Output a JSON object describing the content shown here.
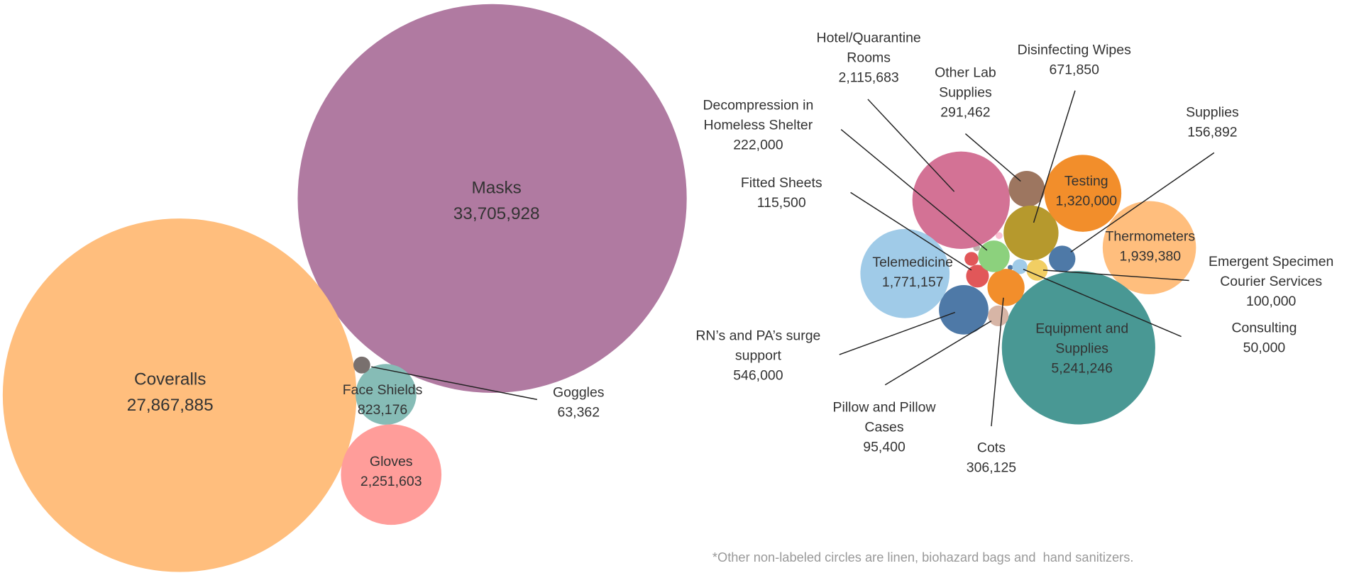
{
  "chart_data": [
    {
      "type": "bubble",
      "categories": [
        "Masks",
        "Coveralls",
        "Face Shields",
        "Gloves",
        "Goggles"
      ],
      "values": [
        33705928,
        27867885,
        823176,
        2251603,
        63362
      ],
      "value_labels": [
        "33,705,928",
        "27,867,885",
        "823,176",
        "2,251,603",
        "63,362"
      ],
      "colors": [
        "#b07aa1",
        "#ffbe7d",
        "#86bcb6",
        "#ff9d9a",
        "#79706e"
      ]
    },
    {
      "type": "bubble",
      "categories": [
        "Hotel/Quarantine Rooms",
        "Other Lab Supplies",
        "Disinfecting Wipes",
        "Testing",
        "Supplies",
        "Thermometers",
        "Emergent Specimen Courier Services",
        "Consulting",
        "Equipment and Supplies",
        "Cots",
        "Pillow and Pillow Cases",
        "RN’s and PA’s surge support",
        "Telemedicine",
        "Fitted Sheets",
        "Decompression in Homeless Shelter"
      ],
      "values": [
        2115683,
        291462,
        671850,
        1320000,
        156892,
        1939380,
        100000,
        50000,
        5241246,
        306125,
        95400,
        546000,
        1771157,
        115500,
        222000
      ],
      "value_labels": [
        "2,115,683",
        "291,462",
        "671,850",
        "1,320,000",
        "156,892",
        "1,939,380",
        "100,000",
        "50,000",
        "5,241,246",
        "306,125",
        "95,400",
        "546,000",
        "1,771,157",
        "115,500",
        "222,000"
      ],
      "colors": [
        "#d37295",
        "#9d7660",
        "#b6992d",
        "#f28e2b",
        "#4e79a7",
        "#ffbe7d",
        "#f1ce63",
        "#a0cbe8",
        "#499894",
        "#f28e2b",
        "#d7b5a6",
        "#4e79a7",
        "#a0cbe8",
        "#e15759",
        "#8cd17d"
      ]
    }
  ],
  "footnote": "*Other non-labeled circles are linen, biohazard bags and  hand sanitizers."
}
